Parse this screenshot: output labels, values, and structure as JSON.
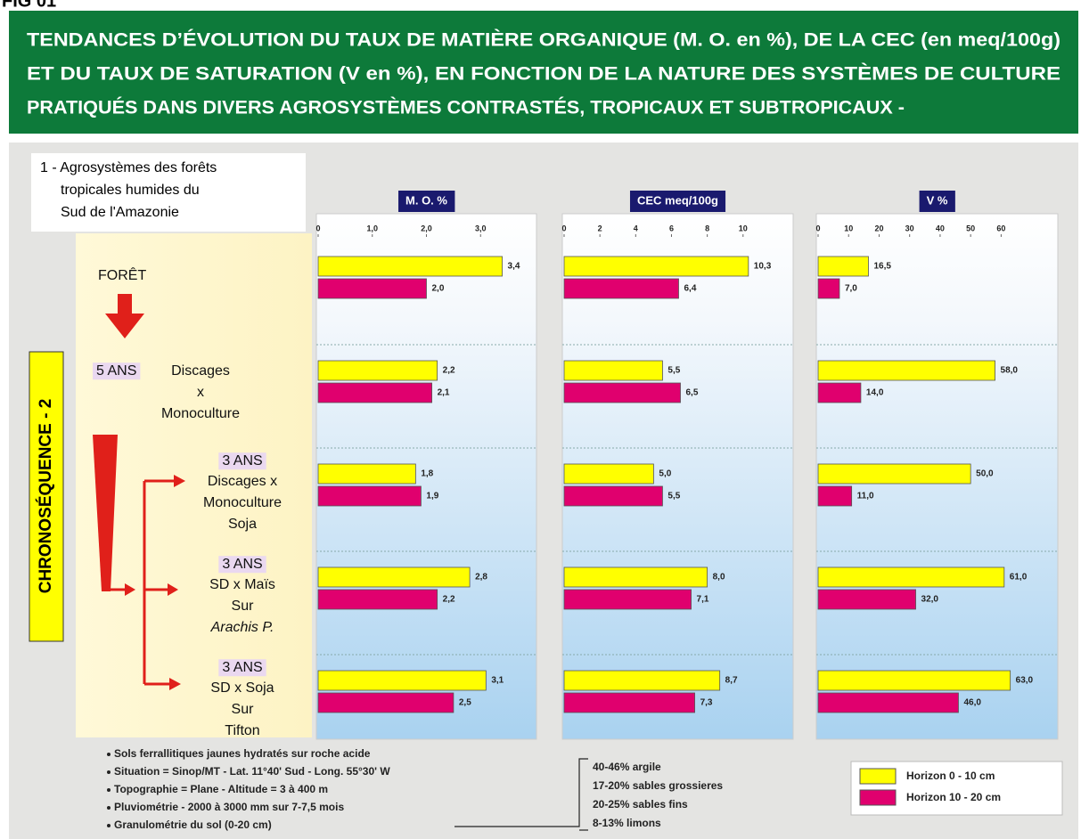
{
  "figure_label": "FIG 01",
  "header": {
    "lines": [
      "TENDANCES D’ÉVOLUTION DU TAUX DE MATIÈRE ORGANIQUE (M. O. en %), DE LA CEC (en meq/100g)",
      "ET DU TAUX DE SATURATION (V en %), EN FONCTION DE LA NATURE DES SYSTÈMES DE CULTURE",
      "PRATIQUÉS DANS DIVERS AGROSYSTÈMES CONTRASTÉS, TROPICAUX ET SUBTROPICAUX -"
    ]
  },
  "region": {
    "lines": [
      "1 - Agrosystèmes des forêts",
      "tropicales humides du",
      "Sud de l'Amazonie"
    ]
  },
  "chronosequence": "CHRONOSÉQUENCE - 2",
  "systems": [
    {
      "lines": [
        "FORÊT"
      ]
    },
    {
      "age": "5 ANS",
      "lines": [
        "Discages",
        "x",
        "Monoculture"
      ]
    },
    {
      "age": "3 ANS",
      "lines": [
        "Discages x",
        "Monoculture",
        "Soja"
      ]
    },
    {
      "age": "3 ANS",
      "lines": [
        "SD x Maïs",
        "Sur",
        "Arachis P."
      ]
    },
    {
      "age": "3 ANS",
      "lines": [
        "SD x Soja",
        "Sur",
        "Tifton"
      ]
    }
  ],
  "chart_data": [
    {
      "type": "bar",
      "orientation": "horizontal",
      "title": "M. O. %",
      "xlim": [
        0,
        4
      ],
      "xticks": [
        0,
        {
          "value": 1,
          "label": "1,0"
        },
        {
          "value": 2,
          "label": "2,0"
        },
        {
          "value": 3,
          "label": "3,0"
        }
      ],
      "series": [
        {
          "name": "Horizon 0 - 10 cm",
          "color": "#ffff00",
          "values": [
            3.4,
            2.2,
            1.8,
            2.8,
            3.1
          ],
          "value_labels": [
            "3,4",
            "2,2",
            "1,8",
            "2,8",
            "3,1"
          ]
        },
        {
          "name": "Horizon 10 - 20 cm",
          "color": "#e0006e",
          "values": [
            2.0,
            2.1,
            1.9,
            2.2,
            2.5
          ],
          "value_labels": [
            "2,0",
            "2,1",
            "1,9",
            "2,2",
            "2,5"
          ]
        }
      ]
    },
    {
      "type": "bar",
      "orientation": "horizontal",
      "title": "CEC meq/100g",
      "xlim": [
        0,
        12.7
      ],
      "xticks": [
        0,
        2,
        4,
        6,
        8,
        10
      ],
      "series": [
        {
          "color": "#ffff00",
          "values": [
            10.3,
            5.5,
            5.0,
            8.0,
            8.7
          ],
          "value_labels": [
            "10,3",
            "5,5",
            "5,0",
            "8,0",
            "8,7"
          ]
        },
        {
          "color": "#e0006e",
          "values": [
            6.4,
            6.5,
            5.5,
            7.1,
            7.3
          ],
          "value_labels": [
            "6,4",
            "6,5",
            "5,5",
            "7,1",
            "7,3"
          ]
        }
      ]
    },
    {
      "type": "bar",
      "orientation": "horizontal",
      "title": "V %",
      "xlim": [
        0,
        78
      ],
      "xticks": [
        0,
        10,
        20,
        30,
        40,
        50,
        60
      ],
      "series": [
        {
          "color": "#ffff00",
          "values": [
            16.5,
            58.0,
            50.0,
            61.0,
            63.0
          ],
          "value_labels": [
            "16,5",
            "58,0",
            "50,0",
            "61,0",
            "63,0"
          ]
        },
        {
          "color": "#e0006e",
          "values": [
            7.0,
            14.0,
            11.0,
            32.0,
            46.0
          ],
          "value_labels": [
            "7,0",
            "14,0",
            "11,0",
            "32,0",
            "46,0"
          ]
        }
      ]
    }
  ],
  "soil_notes": [
    "Sols ferrallitiques jaunes hydratés sur roche acide",
    "Situation = Sinop/MT - Lat. 11°40' Sud - Long. 55°30' W",
    "Topographie = Plane - Altitude = 3 à 400 m",
    "Pluviométrie - 2000 à 3000 mm sur 7-7,5 mois",
    "Granulométrie du sol (0-20 cm)"
  ],
  "granulometry": [
    "40-46% argile",
    "17-20% sables grossieres",
    "20-25% sables fins",
    "8-13% limons"
  ]
}
